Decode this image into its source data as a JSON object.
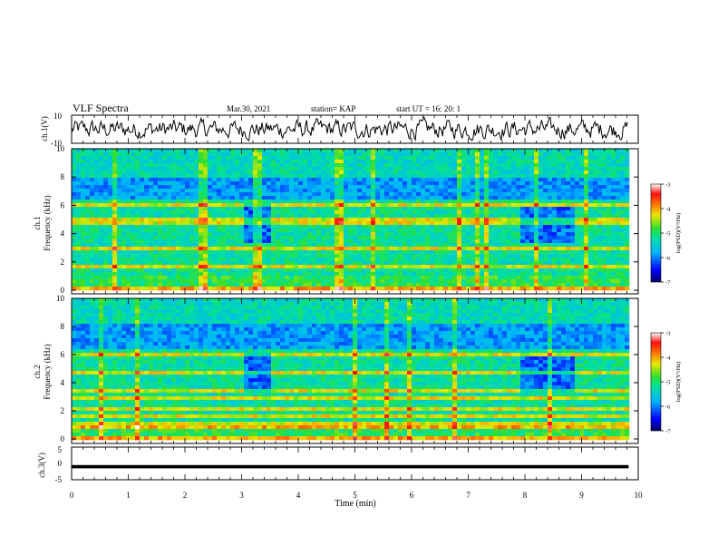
{
  "header": {
    "title": "VLF Spectra",
    "date": "Mar.30, 2021",
    "station": "station= KAP",
    "start": "start  UT =   16: 20: 1"
  },
  "chart_data": [
    {
      "type": "line",
      "name": "ch1-waveform",
      "ylabel": "ch.1(V)",
      "ylim": [
        -10,
        10
      ],
      "yticks": [
        "10",
        "-10"
      ],
      "xlim": [
        0,
        9.83
      ],
      "mean": 0,
      "amplitude": 6.5
    },
    {
      "type": "heatmap",
      "name": "ch1-spectrogram",
      "ylabel": "ch.1\nFrequency  (kHz)",
      "ylim": [
        0,
        10
      ],
      "yticks": [
        "0",
        "2",
        "4",
        "6",
        "8",
        "10"
      ],
      "xlim": [
        0,
        9.83
      ],
      "colorbar": {
        "label": "log(PSD)(V²/Hz)",
        "ticks": [
          "-3",
          "-4",
          "-5",
          "-6",
          "-7"
        ],
        "range": [
          -7,
          -3
        ]
      },
      "blue_patches_min_kHz": [
        [
          3.0,
          3.45,
          3.5,
          6.2
        ],
        [
          7.9,
          8.8,
          3.5,
          6.0
        ]
      ]
    },
    {
      "type": "heatmap",
      "name": "ch2-spectrogram",
      "ylabel": "ch.2\nFrequency  (kHz)",
      "ylim": [
        0,
        10
      ],
      "yticks": [
        "0",
        "2",
        "4",
        "6",
        "8",
        "10"
      ],
      "xlim": [
        0,
        9.83
      ],
      "colorbar": {
        "label": "log(PSD)(V²/Hz)",
        "ticks": [
          "-3",
          "-4",
          "-5",
          "-6",
          "-7"
        ],
        "range": [
          -7,
          -3
        ]
      },
      "blue_patches_min_kHz": [
        [
          3.0,
          3.45,
          3.5,
          6.2
        ],
        [
          7.9,
          8.8,
          3.5,
          6.0
        ]
      ]
    },
    {
      "type": "line",
      "name": "ch3-waveform",
      "ylabel": "ch.3(V)",
      "ylim": [
        -5,
        5
      ],
      "yticks": [
        "5",
        "0",
        "-5"
      ],
      "xlim": [
        0,
        9.83
      ],
      "mean": -1.0,
      "amplitude": 0.5
    }
  ],
  "xaxis": {
    "label": "Time  (min)",
    "range": [
      0,
      10
    ],
    "ticks": [
      "0",
      "1",
      "2",
      "3",
      "4",
      "5",
      "6",
      "7",
      "8",
      "9",
      "10"
    ]
  }
}
